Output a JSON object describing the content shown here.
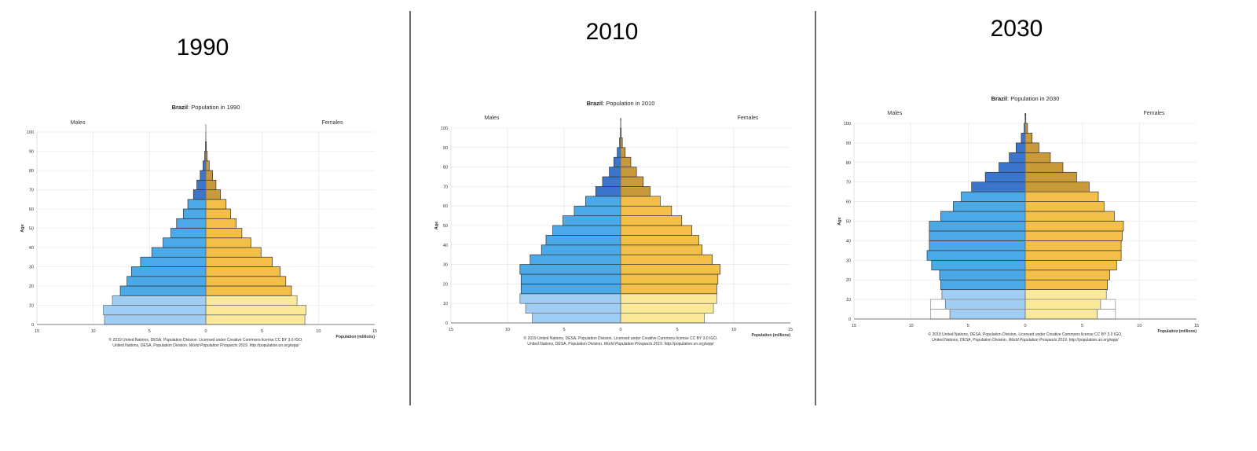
{
  "colors": {
    "male_young": "#9fcdf4",
    "male_mid": "#4aa9e6",
    "male_old": "#3c76cc",
    "female_young": "#fbe99a",
    "female_mid": "#f4bf48",
    "female_old": "#c99a3a",
    "grid": "#e3e3e3",
    "axis": "#555555",
    "divider": "#6b6b6b"
  },
  "chart_data": [
    {
      "type": "bar",
      "year_label": "1990",
      "title_bold": "Brazil",
      "title_rest": ": Population in 1990",
      "left_label": "Males",
      "right_label": "Females",
      "ylabel": "Age",
      "xlabel": "Population (millions)",
      "x_ticks": [
        "15",
        "10",
        "5",
        "0",
        "5",
        "10",
        "15"
      ],
      "y_ticks": [
        "0",
        "10",
        "20",
        "30",
        "40",
        "50",
        "60",
        "70",
        "80",
        "90",
        "100"
      ],
      "xlim": [
        -15,
        15
      ],
      "ylim": [
        0,
        100
      ],
      "grid": true,
      "footer_line1": "© 2019 United Nations, DESA, Population Division. Licensed under Creative Commons license CC BY 3.0 IGO.",
      "footer_line2_a": "United Nations, DESA, Population Division. ",
      "footer_line2_b": "World Population Prospects 2019",
      "footer_line2_c": ". http://population.un.org/wpp/",
      "age_groups": [
        "0-4",
        "5-9",
        "10-14",
        "15-19",
        "20-24",
        "25-29",
        "30-34",
        "35-39",
        "40-44",
        "45-49",
        "50-54",
        "55-59",
        "60-64",
        "65-69",
        "70-74",
        "75-79",
        "80-84",
        "85-89",
        "90-94",
        "95-99",
        "100+"
      ],
      "males": [
        9.0,
        9.1,
        8.3,
        7.6,
        7.0,
        6.6,
        5.8,
        4.8,
        3.8,
        3.1,
        2.6,
        2.0,
        1.6,
        1.1,
        0.8,
        0.5,
        0.25,
        0.1,
        0.04,
        0.01,
        0.0
      ],
      "females": [
        8.8,
        8.9,
        8.1,
        7.6,
        7.1,
        6.6,
        5.9,
        4.9,
        4.0,
        3.2,
        2.7,
        2.2,
        1.8,
        1.3,
        0.9,
        0.6,
        0.3,
        0.12,
        0.05,
        0.01,
        0.0
      ],
      "future": false
    },
    {
      "type": "bar",
      "year_label": "2010",
      "title_bold": "Brazil",
      "title_rest": ": Population in 2010",
      "left_label": "Males",
      "right_label": "Females",
      "ylabel": "Age",
      "xlabel": "Population (millions)",
      "x_ticks": [
        "15",
        "10",
        "5",
        "0",
        "5",
        "10",
        "15"
      ],
      "y_ticks": [
        "0",
        "10",
        "20",
        "30",
        "40",
        "50",
        "60",
        "70",
        "80",
        "90",
        "100"
      ],
      "xlim": [
        -15,
        15
      ],
      "ylim": [
        0,
        100
      ],
      "grid": true,
      "footer_line1": "© 2019 United Nations, DESA, Population Division. Licensed under Creative Commons license CC BY 3.0 IGO.",
      "footer_line2_a": "United Nations, DESA, Population Division. ",
      "footer_line2_b": "World Population Prospects 2019",
      "footer_line2_c": ". http://population.un.org/wpp/",
      "age_groups": [
        "0-4",
        "5-9",
        "10-14",
        "15-19",
        "20-24",
        "25-29",
        "30-34",
        "35-39",
        "40-44",
        "45-49",
        "50-54",
        "55-59",
        "60-64",
        "65-69",
        "70-74",
        "75-79",
        "80-84",
        "85-89",
        "90-94",
        "95-99",
        "100+"
      ],
      "males": [
        7.8,
        8.4,
        8.9,
        8.8,
        8.8,
        8.9,
        8.0,
        7.0,
        6.6,
        6.0,
        5.1,
        4.1,
        3.1,
        2.2,
        1.6,
        1.0,
        0.6,
        0.3,
        0.1,
        0.03,
        0.01
      ],
      "females": [
        7.4,
        8.2,
        8.5,
        8.5,
        8.6,
        8.8,
        8.1,
        7.2,
        6.9,
        6.3,
        5.4,
        4.5,
        3.5,
        2.6,
        2.0,
        1.4,
        0.9,
        0.4,
        0.15,
        0.05,
        0.02
      ],
      "future": false
    },
    {
      "type": "bar",
      "year_label": "2030",
      "title_bold": "Brazil",
      "title_rest": ": Population in 2030",
      "left_label": "Males",
      "right_label": "Females",
      "ylabel": "Age",
      "xlabel": "Population (millions)",
      "x_ticks": [
        "15",
        "10",
        "5",
        "0",
        "5",
        "10",
        "15"
      ],
      "y_ticks": [
        "0",
        "10",
        "20",
        "30",
        "40",
        "50",
        "60",
        "70",
        "80",
        "90",
        "100"
      ],
      "xlim": [
        -15,
        15
      ],
      "ylim": [
        0,
        100
      ],
      "grid": true,
      "footer_line1": "© 2019 United Nations, DESA, Population Division. Licensed under Creative Commons license CC BY 3.0 IGO.",
      "footer_line2_a": "United Nations, DESA, Population Division. ",
      "footer_line2_b": "World Population Prospects 2019",
      "footer_line2_c": ". http://population.un.org/wpp/",
      "age_groups": [
        "0-4",
        "5-9",
        "10-14",
        "15-19",
        "20-24",
        "25-29",
        "30-34",
        "35-39",
        "40-44",
        "45-49",
        "50-54",
        "55-59",
        "60-64",
        "65-69",
        "70-74",
        "75-79",
        "80-84",
        "85-89",
        "90-94",
        "95-99",
        "100+"
      ],
      "males": [
        6.6,
        7.0,
        7.3,
        7.4,
        7.5,
        8.2,
        8.6,
        8.4,
        8.4,
        8.4,
        7.4,
        6.3,
        5.6,
        4.7,
        3.5,
        2.3,
        1.4,
        0.8,
        0.35,
        0.1,
        0.02
      ],
      "females": [
        6.3,
        6.6,
        7.1,
        7.2,
        7.4,
        8.0,
        8.4,
        8.4,
        8.5,
        8.6,
        7.8,
        6.9,
        6.4,
        5.6,
        4.5,
        3.3,
        2.2,
        1.2,
        0.6,
        0.2,
        0.05
      ],
      "outline_males": [
        8.3,
        8.3
      ],
      "outline_females": [
        7.9,
        7.9
      ],
      "future": true
    }
  ]
}
